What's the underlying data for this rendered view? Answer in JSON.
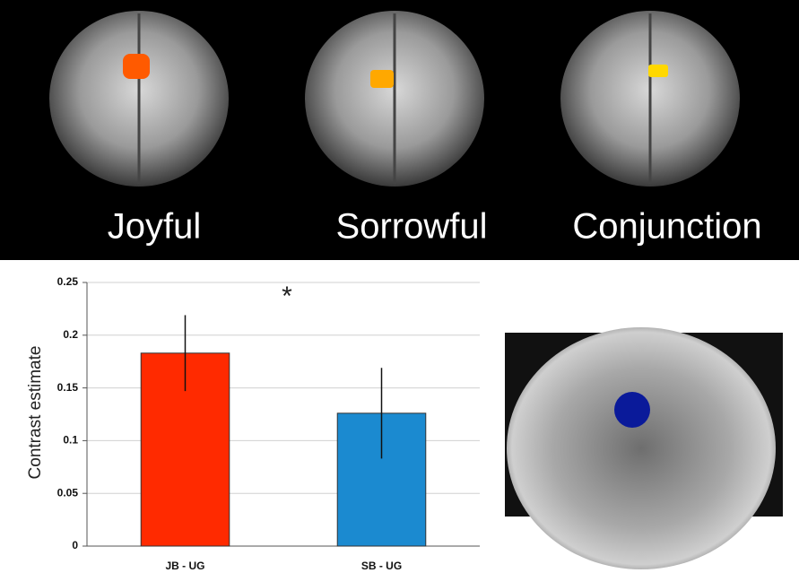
{
  "panels": {
    "labels": [
      "Joyful",
      "Sorrowful",
      "Conjunction"
    ]
  },
  "chart_data": {
    "type": "bar",
    "ylabel": "Contrast estimate",
    "annotation": "*",
    "categories": [
      "JB - UG",
      "SB - UG"
    ],
    "values": [
      0.183,
      0.126
    ],
    "errors": [
      0.036,
      0.043
    ],
    "colors": [
      "#ff2a00",
      "#1b8ad0"
    ],
    "ylim": [
      0,
      0.25
    ],
    "yticks": [
      0,
      0.05,
      0.1,
      0.15,
      0.2,
      0.25
    ],
    "grid": true
  }
}
